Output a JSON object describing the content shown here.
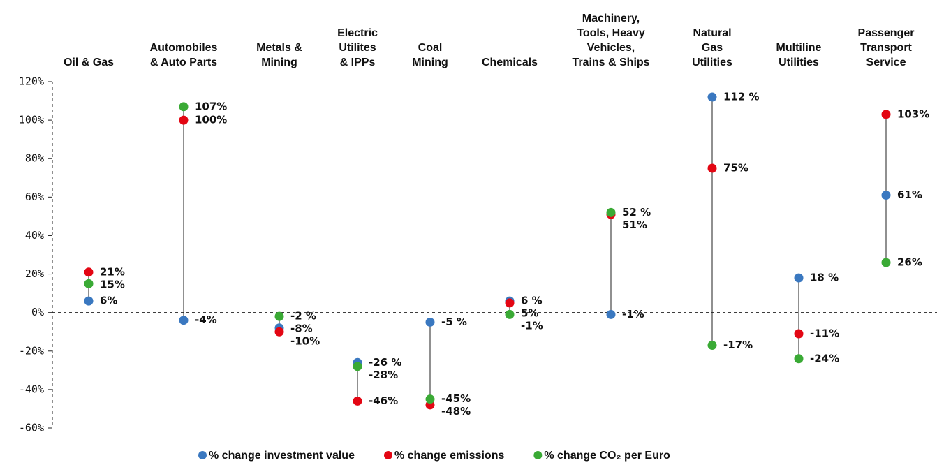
{
  "chart_data": {
    "type": "dot",
    "categories": [
      [
        "Oil & Gas"
      ],
      [
        "Automobiles",
        "& Auto Parts"
      ],
      [
        "Metals &",
        "Mining"
      ],
      [
        "Electric",
        "Utilites",
        "& IPPs"
      ],
      [
        "Coal",
        "Mining"
      ],
      [
        "Chemicals"
      ],
      [
        "Machinery,",
        "Tools, Heavy",
        "Vehicles,",
        "Trains & Ships"
      ],
      [
        "Natural",
        "Gas",
        "Utilities"
      ],
      [
        "Multiline",
        "Utilities"
      ],
      [
        "Passenger",
        "Transport",
        "Service"
      ]
    ],
    "series": [
      {
        "name": "% change investment value",
        "color": "#3a78c0",
        "values": [
          6,
          -4,
          -8,
          -26,
          -5,
          6,
          -1,
          112,
          18,
          61
        ],
        "value_labels": [
          "6%",
          "-4%",
          "-8%",
          "-26 %",
          "-5 %",
          "6 %",
          "-1%",
          "112 %",
          "18 %",
          "61%"
        ]
      },
      {
        "name": "% change emissions",
        "color": "#e30613",
        "values": [
          21,
          100,
          -10,
          -46,
          -48,
          5,
          51,
          75,
          -11,
          103
        ],
        "value_labels": [
          "21%",
          "100%",
          "-10%",
          "-46%",
          "-48%",
          "5%",
          "51%",
          "75%",
          "-11%",
          "103%"
        ]
      },
      {
        "name": "% change CO₂ per Euro",
        "color": "#3aaa35",
        "values": [
          15,
          107,
          -2,
          -28,
          -45,
          -1,
          52,
          -17,
          -24,
          26
        ],
        "value_labels": [
          "15%",
          "107%",
          "-2 %",
          "-28%",
          "-45%",
          "-1%",
          "52 %",
          "-17%",
          "-24%",
          "26%"
        ]
      }
    ],
    "ylim": [
      -60,
      120
    ],
    "yticks": [
      {
        "value": -60,
        "label": "-60%"
      },
      {
        "value": -40,
        "label": "-40%"
      },
      {
        "value": -20,
        "label": "-20%"
      },
      {
        "value": 0,
        "label": "0%"
      },
      {
        "value": 20,
        "label": "20%"
      },
      {
        "value": 40,
        "label": "40%"
      },
      {
        "value": 60,
        "label": "60%"
      },
      {
        "value": 80,
        "label": "80%"
      },
      {
        "value": 100,
        "label": "100%"
      },
      {
        "value": 120,
        "label": "120%"
      }
    ],
    "legend": "bottom"
  }
}
